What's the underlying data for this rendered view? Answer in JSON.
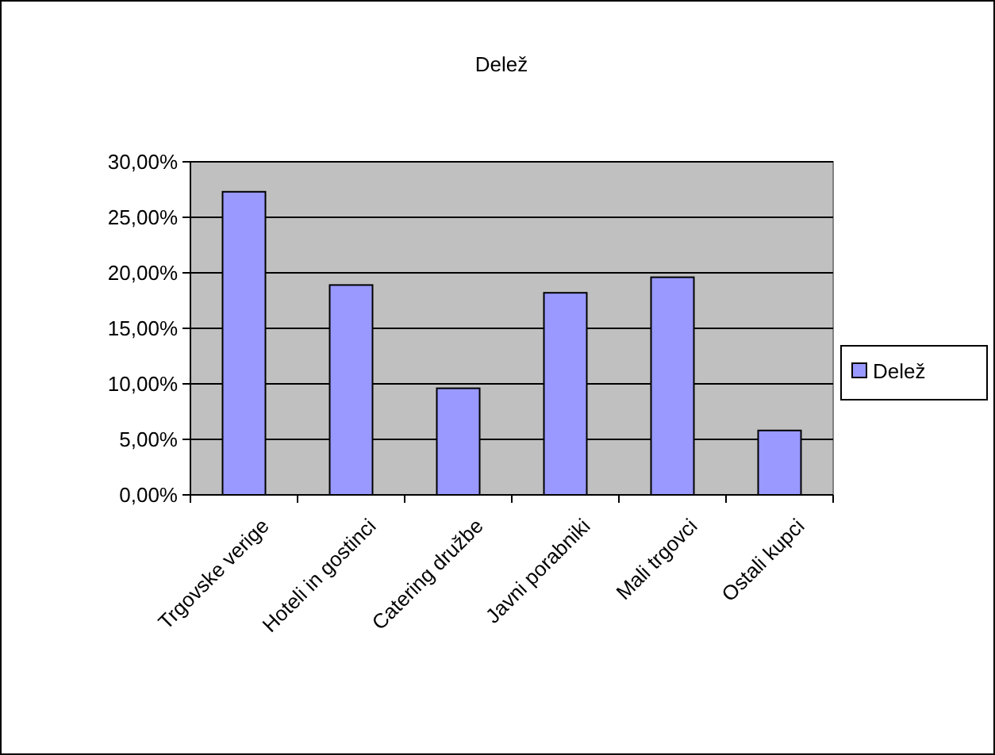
{
  "chart_data": {
    "type": "bar",
    "title": "Delež",
    "categories": [
      "Trgovske verige",
      "Hoteli in gostinci",
      "Catering družbe",
      "Javni porabniki",
      "Mali trgovci",
      "Ostali kupci"
    ],
    "series": [
      {
        "name": "Delež",
        "color": "#9999ff",
        "values": [
          27.3,
          18.9,
          9.6,
          18.2,
          19.6,
          5.8
        ]
      }
    ],
    "ylim": [
      0,
      30
    ],
    "yticks": [
      {
        "value": 0,
        "label": "0,00%"
      },
      {
        "value": 5,
        "label": "5,00%"
      },
      {
        "value": 10,
        "label": "10,00%"
      },
      {
        "value": 15,
        "label": "15,00%"
      },
      {
        "value": 20,
        "label": "20,00%"
      },
      {
        "value": 25,
        "label": "25,00%"
      },
      {
        "value": 30,
        "label": "30,00%"
      }
    ],
    "grid": "y",
    "legend": "right"
  }
}
